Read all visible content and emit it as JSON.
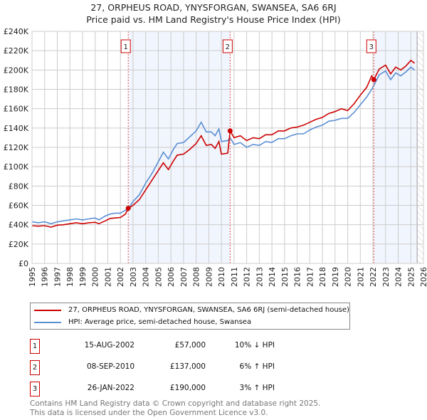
{
  "chart_data": {
    "type": "line",
    "title": "27, ORPHEUS ROAD, YNYSFORGAN, SWANSEA, SA6 6RJ",
    "subtitle": "Price paid vs. HM Land Registry's House Price Index (HPI)",
    "xlim": [
      1995,
      2026
    ],
    "ylim": [
      0,
      240000
    ],
    "x_ticks": [
      "1995",
      "1996",
      "1997",
      "1998",
      "1999",
      "2000",
      "2001",
      "2002",
      "2003",
      "2004",
      "2005",
      "2006",
      "2007",
      "2008",
      "2009",
      "2010",
      "2011",
      "2012",
      "2013",
      "2014",
      "2015",
      "2016",
      "2017",
      "2018",
      "2019",
      "2020",
      "2021",
      "2022",
      "2023",
      "2024",
      "2025",
      "2026"
    ],
    "y_ticks": [
      {
        "value": 0,
        "label": "£0"
      },
      {
        "value": 20000,
        "label": "£20K"
      },
      {
        "value": 40000,
        "label": "£40K"
      },
      {
        "value": 60000,
        "label": "£60K"
      },
      {
        "value": 80000,
        "label": "£80K"
      },
      {
        "value": 100000,
        "label": "£100K"
      },
      {
        "value": 120000,
        "label": "£120K"
      },
      {
        "value": 140000,
        "label": "£140K"
      },
      {
        "value": 160000,
        "label": "£160K"
      },
      {
        "value": 180000,
        "label": "£180K"
      },
      {
        "value": 200000,
        "label": "£200K"
      },
      {
        "value": 220000,
        "label": "£220K"
      },
      {
        "value": 240000,
        "label": "£240K"
      }
    ],
    "grid": true,
    "x": [
      1995.0,
      1995.5,
      1996.0,
      1996.5,
      1997.0,
      1997.5,
      1998.0,
      1998.5,
      1999.0,
      1999.5,
      2000.0,
      2000.3,
      2000.8,
      2001.2,
      2001.6,
      2002.0,
      2002.4,
      2002.62,
      2003.0,
      2003.5,
      2004.0,
      2004.5,
      2005.0,
      2005.4,
      2005.8,
      2006.2,
      2006.5,
      2007.0,
      2007.5,
      2008.0,
      2008.4,
      2008.8,
      2009.2,
      2009.5,
      2009.8,
      2010.0,
      2010.5,
      2010.69,
      2011.0,
      2011.5,
      2012.0,
      2012.5,
      2013.0,
      2013.5,
      2014.0,
      2014.5,
      2015.0,
      2015.5,
      2016.0,
      2016.5,
      2017.0,
      2017.5,
      2018.0,
      2018.5,
      2019.0,
      2019.5,
      2020.0,
      2020.5,
      2021.0,
      2021.5,
      2021.9,
      2022.07,
      2022.5,
      2023.0,
      2023.4,
      2023.8,
      2024.2,
      2024.6,
      2025.0,
      2025.3
    ],
    "series": [
      {
        "name": "27, ORPHEUS ROAD, YNYSFORGAN, SWANSEA, SA6 6RJ (semi-detached house)",
        "color": "#cc0000",
        "values": [
          39000,
          38500,
          39000,
          37500,
          39500,
          40000,
          41000,
          42000,
          41000,
          42000,
          42500,
          41000,
          44000,
          46500,
          47000,
          47500,
          51000,
          57000,
          60000,
          66000,
          76000,
          86000,
          96000,
          104000,
          97000,
          106000,
          112000,
          113000,
          118000,
          124000,
          132000,
          122000,
          123000,
          119000,
          126000,
          113000,
          114000,
          137000,
          130000,
          132000,
          127000,
          130000,
          129000,
          133000,
          133000,
          137000,
          137000,
          140000,
          141000,
          143000,
          146000,
          149000,
          151000,
          155000,
          157000,
          160000,
          158000,
          165000,
          174000,
          182000,
          194000,
          190000,
          201000,
          205000,
          196000,
          203000,
          200000,
          204000,
          210000,
          207000
        ]
      },
      {
        "name": "HPI: Average price, semi-detached house, Swansea",
        "color": "#5b8fd4",
        "values": [
          43000,
          42000,
          43000,
          41000,
          43000,
          44000,
          45000,
          46000,
          45000,
          46000,
          47000,
          45000,
          49000,
          51000,
          52000,
          52000,
          55000,
          56000,
          64000,
          71000,
          83000,
          93000,
          105000,
          115000,
          108000,
          118000,
          124000,
          125000,
          131000,
          137000,
          146000,
          136000,
          136000,
          132000,
          139000,
          126000,
          127000,
          130000,
          123000,
          125000,
          120000,
          123000,
          122000,
          126000,
          125000,
          129000,
          129000,
          132000,
          134000,
          134000,
          138000,
          141000,
          143000,
          147000,
          148000,
          150000,
          150000,
          156000,
          164000,
          172000,
          180000,
          184000,
          195000,
          199000,
          190000,
          197000,
          194000,
          198000,
          203000,
          200000
        ]
      }
    ],
    "sales": [
      {
        "id": "1",
        "x": 2002.62,
        "price": 57000,
        "date": "15-AUG-2002",
        "price_label": "£57,000",
        "hpi": "10% ↓ HPI"
      },
      {
        "id": "2",
        "x": 2010.69,
        "price": 137000,
        "date": "08-SEP-2010",
        "price_label": "£137,000",
        "hpi": "6% ↑ HPI"
      },
      {
        "id": "3",
        "x": 2022.07,
        "price": 190000,
        "date": "26-JAN-2022",
        "price_label": "£190,000",
        "hpi": "3% ↑ HPI"
      }
    ],
    "shaded_ranges": [
      [
        2002.62,
        2010.69
      ],
      [
        2022.07,
        2025.5
      ]
    ],
    "forecast_hatch_from": 2025.5,
    "legend_position": "below"
  },
  "footer": {
    "line1": "Contains HM Land Registry data © Crown copyright and database right 2025.",
    "line2": "This data is licensed under the Open Government Licence v3.0."
  }
}
